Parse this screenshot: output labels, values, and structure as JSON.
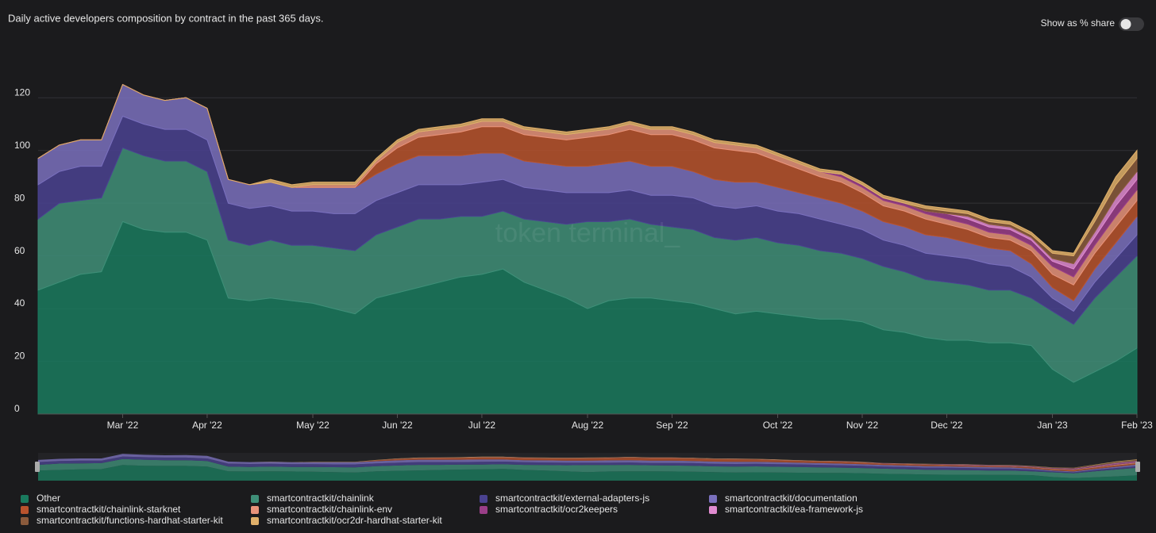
{
  "chart_data": {
    "type": "stacked_area",
    "title": "Daily active developers composition by contract in the past 365 days.",
    "toggle_label": "Show as % share",
    "watermark": "token terminal_",
    "categories": [
      null,
      null,
      null,
      null,
      "Mar '22",
      null,
      null,
      null,
      "Apr '22",
      null,
      null,
      null,
      null,
      "May '22",
      null,
      null,
      null,
      "Jun '22",
      null,
      null,
      null,
      "Jul '22",
      null,
      null,
      null,
      null,
      "Aug '22",
      null,
      null,
      null,
      "Sep '22",
      null,
      null,
      null,
      null,
      "Oct '22",
      null,
      null,
      null,
      "Nov '22",
      null,
      null,
      null,
      "Dec '22",
      null,
      null,
      null,
      null,
      "Jan '23",
      null,
      null,
      null,
      "Feb '23"
    ],
    "ylim": [
      0,
      130
    ],
    "yticks": [
      0,
      20,
      40,
      60,
      80,
      100,
      120
    ],
    "grid": true,
    "series": [
      {
        "name": "Other",
        "color": "#1a7a5e",
        "values": [
          47,
          50,
          53,
          54,
          73,
          70,
          69,
          69,
          66,
          44,
          43,
          44,
          43,
          42,
          40,
          38,
          44,
          46,
          48,
          50,
          52,
          53,
          55,
          50,
          47,
          44,
          40,
          43,
          44,
          44,
          43,
          42,
          40,
          38,
          39,
          38,
          37,
          36,
          36,
          35,
          32,
          31,
          29,
          28,
          28,
          27,
          27,
          26,
          17,
          12,
          16,
          20,
          25
        ]
      },
      {
        "name": "smartcontractkit/chainlink",
        "color": "#3f8f78",
        "values": [
          27,
          30,
          28,
          28,
          28,
          28,
          27,
          27,
          26,
          22,
          21,
          22,
          21,
          22,
          23,
          24,
          24,
          25,
          26,
          24,
          23,
          22,
          22,
          24,
          26,
          28,
          33,
          30,
          30,
          28,
          28,
          28,
          27,
          28,
          28,
          27,
          27,
          26,
          25,
          24,
          24,
          23,
          22,
          22,
          21,
          20,
          20,
          18,
          22,
          22,
          28,
          32,
          35
        ]
      },
      {
        "name": "smartcontractkit/external-adapters-js",
        "color": "#4a4290",
        "values": [
          13,
          12,
          13,
          12,
          12,
          12,
          12,
          12,
          12,
          14,
          14,
          13,
          13,
          13,
          13,
          14,
          13,
          13,
          13,
          13,
          12,
          13,
          12,
          12,
          12,
          12,
          11,
          11,
          11,
          11,
          12,
          12,
          12,
          12,
          12,
          12,
          12,
          12,
          11,
          11,
          10,
          10,
          10,
          10,
          10,
          10,
          9,
          8,
          5,
          5,
          6,
          7,
          8
        ]
      },
      {
        "name": "smartcontractkit/documentation",
        "color": "#7a70bd",
        "values": [
          10,
          10,
          10,
          10,
          12,
          11,
          11,
          12,
          12,
          9,
          9,
          9,
          9,
          9,
          10,
          10,
          10,
          11,
          11,
          11,
          11,
          11,
          10,
          10,
          10,
          10,
          10,
          11,
          11,
          11,
          11,
          10,
          10,
          10,
          9,
          9,
          8,
          8,
          8,
          7,
          7,
          7,
          7,
          7,
          6,
          6,
          6,
          5,
          4,
          4,
          5,
          6,
          7
        ]
      },
      {
        "name": "smartcontractkit/chainlink-starknet",
        "color": "#b9532d",
        "values": [
          0,
          0,
          0,
          0,
          0,
          0,
          0,
          0,
          0,
          0,
          0,
          0,
          0,
          0,
          0,
          0,
          4,
          6,
          7,
          8,
          9,
          10,
          10,
          10,
          10,
          10,
          11,
          11,
          12,
          12,
          12,
          12,
          12,
          12,
          11,
          10,
          9,
          8,
          8,
          7,
          6,
          6,
          6,
          5,
          5,
          4,
          4,
          5,
          5,
          6,
          6,
          6,
          6
        ]
      },
      {
        "name": "smartcontractkit/chainlink-env",
        "color": "#e8937a",
        "values": [
          0,
          0,
          0,
          0,
          0,
          0,
          0,
          0,
          0,
          0,
          0,
          0,
          0,
          1,
          1,
          1,
          1,
          2,
          2,
          2,
          2,
          2,
          2,
          2,
          2,
          2,
          2,
          2,
          2,
          2,
          2,
          2,
          2,
          2,
          2,
          2,
          2,
          2,
          2,
          2,
          2,
          2,
          2,
          2,
          2,
          2,
          2,
          2,
          3,
          3,
          3,
          4,
          4
        ]
      },
      {
        "name": "smartcontractkit/ocr2keepers",
        "color": "#9a3e88",
        "values": [
          0,
          0,
          0,
          0,
          0,
          0,
          0,
          0,
          0,
          0,
          0,
          0,
          0,
          0,
          0,
          0,
          0,
          0,
          0,
          0,
          0,
          0,
          0,
          0,
          0,
          0,
          0,
          0,
          0,
          0,
          0,
          0,
          0,
          0,
          0,
          0,
          0,
          0,
          1,
          1,
          1,
          1,
          1,
          2,
          2,
          2,
          2,
          2,
          2,
          3,
          3,
          4,
          4
        ]
      },
      {
        "name": "smartcontractkit/ea-framework-js",
        "color": "#e08bd0",
        "values": [
          0,
          0,
          0,
          0,
          0,
          0,
          0,
          0,
          0,
          0,
          0,
          0,
          0,
          0,
          0,
          0,
          0,
          0,
          0,
          0,
          0,
          0,
          0,
          0,
          0,
          0,
          0,
          0,
          0,
          0,
          0,
          0,
          0,
          0,
          0,
          0,
          0,
          0,
          0,
          0,
          0,
          0,
          0,
          0,
          1,
          1,
          1,
          1,
          1,
          2,
          2,
          3,
          3
        ]
      },
      {
        "name": "smartcontractkit/functions-hardhat-starter-kit",
        "color": "#8a5a3c",
        "values": [
          0,
          0,
          0,
          0,
          0,
          0,
          0,
          0,
          0,
          0,
          0,
          0,
          0,
          0,
          0,
          0,
          0,
          0,
          0,
          0,
          0,
          0,
          0,
          0,
          0,
          0,
          0,
          0,
          0,
          0,
          0,
          0,
          0,
          0,
          0,
          0,
          0,
          0,
          0,
          0,
          0,
          0,
          1,
          1,
          1,
          1,
          1,
          1,
          2,
          3,
          4,
          5,
          5
        ]
      },
      {
        "name": "smartcontractkit/ocr2dr-hardhat-starter-kit",
        "color": "#e0b06a",
        "values": [
          0,
          0,
          0,
          0,
          0,
          0,
          0,
          0,
          0,
          0,
          0,
          1,
          1,
          1,
          1,
          1,
          1,
          1,
          1,
          1,
          1,
          1,
          1,
          1,
          1,
          1,
          1,
          1,
          1,
          1,
          1,
          1,
          1,
          1,
          1,
          1,
          1,
          1,
          1,
          1,
          1,
          1,
          1,
          1,
          1,
          1,
          1,
          1,
          1,
          1,
          2,
          3,
          3
        ]
      }
    ]
  }
}
